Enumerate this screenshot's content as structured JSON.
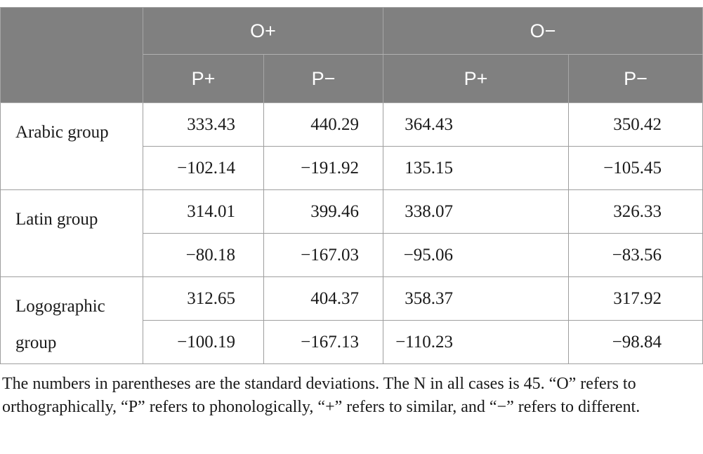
{
  "table": {
    "header": {
      "group_o_plus": "O+",
      "group_o_minus": "O−",
      "sub": [
        "P+",
        "P−",
        "P+",
        "P−"
      ]
    },
    "groups": [
      {
        "label": "Arabic group",
        "means": [
          "333.43",
          "440.29",
          "364.43",
          "350.42"
        ],
        "sds": [
          "−102.14",
          "−191.92",
          "135.15",
          "−105.45"
        ]
      },
      {
        "label": "Latin group",
        "means": [
          "314.01",
          "399.46",
          "338.07",
          "326.33"
        ],
        "sds": [
          "−80.18",
          "−167.03",
          "−95.06",
          "−83.56"
        ]
      },
      {
        "label": "Logographic group",
        "means": [
          "312.65",
          "404.37",
          "358.37",
          "317.92"
        ],
        "sds": [
          "−100.19",
          "−167.13",
          "−110.23",
          "−98.84"
        ]
      }
    ]
  },
  "note": "The numbers in parentheses are the standard deviations. The N in all cases is 45. “O” refers to orthographically, “P” refers to phonologically, “+” refers to similar, and “−” refers to different."
}
